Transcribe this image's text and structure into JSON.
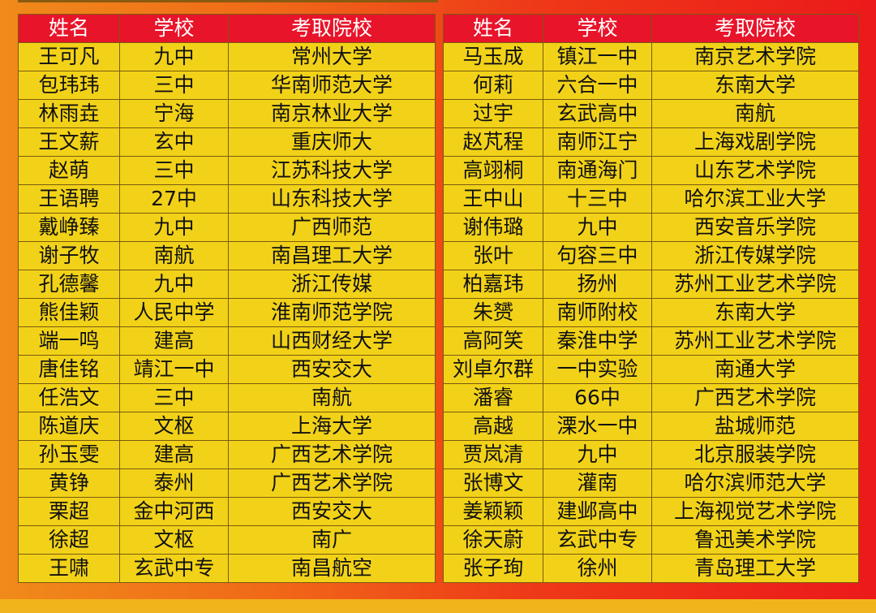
{
  "headers": [
    "姓名",
    "学校",
    "考取院校"
  ],
  "left": [
    [
      "王可凡",
      "九中",
      "常州大学"
    ],
    [
      "包玮玮",
      "三中",
      "华南师范大学"
    ],
    [
      "林雨垚",
      "宁海",
      "南京林业大学"
    ],
    [
      "王文薪",
      "玄中",
      "重庆师大"
    ],
    [
      "赵萌",
      "三中",
      "江苏科技大学"
    ],
    [
      "王语聘",
      "27中",
      "山东科技大学"
    ],
    [
      "戴峥臻",
      "九中",
      "广西师范"
    ],
    [
      "谢子牧",
      "南航",
      "南昌理工大学"
    ],
    [
      "孔德馨",
      "九中",
      "浙江传媒"
    ],
    [
      "熊佳颖",
      "人民中学",
      "淮南师范学院"
    ],
    [
      "端一鸣",
      "建高",
      "山西财经大学"
    ],
    [
      "唐佳铭",
      "靖江一中",
      "西安交大"
    ],
    [
      "任浩文",
      "三中",
      "南航"
    ],
    [
      "陈道庆",
      "文枢",
      "上海大学"
    ],
    [
      "孙玉雯",
      "建高",
      "广西艺术学院"
    ],
    [
      "黄铮",
      "泰州",
      "广西艺术学院"
    ],
    [
      "栗超",
      "金中河西",
      "西安交大"
    ],
    [
      "徐超",
      "文枢",
      "南广"
    ],
    [
      "王啸",
      "玄武中专",
      "南昌航空"
    ]
  ],
  "right": [
    [
      "马玉成",
      "镇江一中",
      "南京艺术学院"
    ],
    [
      "何莉",
      "六合一中",
      "东南大学"
    ],
    [
      "过宇",
      "玄武高中",
      "南航"
    ],
    [
      "赵芃程",
      "南师江宁",
      "上海戏剧学院"
    ],
    [
      "高翊桐",
      "南通海门",
      "山东艺术学院"
    ],
    [
      "王中山",
      "十三中",
      "哈尔滨工业大学"
    ],
    [
      "谢伟璐",
      "九中",
      "西安音乐学院"
    ],
    [
      "张叶",
      "句容三中",
      "浙江传媒学院"
    ],
    [
      "柏嘉玮",
      "扬州",
      "苏州工业艺术学院"
    ],
    [
      "朱赟",
      "南师附校",
      "东南大学"
    ],
    [
      "高阿笑",
      "秦淮中学",
      "苏州工业艺术学院"
    ],
    [
      "刘卓尔群",
      "一中实验",
      "南通大学"
    ],
    [
      "潘睿",
      "66中",
      "广西艺术学院"
    ],
    [
      "高越",
      "溧水一中",
      "盐城师范"
    ],
    [
      "贾岚清",
      "九中",
      "北京服装学院"
    ],
    [
      "张博文",
      "灌南",
      "哈尔滨师范大学"
    ],
    [
      "姜颖颖",
      "建邺高中",
      "上海视觉艺术学院"
    ],
    [
      "徐天蔚",
      "玄武中专",
      "鲁迅美术学院"
    ],
    [
      "张子珣",
      "徐州",
      "青岛理工大学"
    ]
  ]
}
